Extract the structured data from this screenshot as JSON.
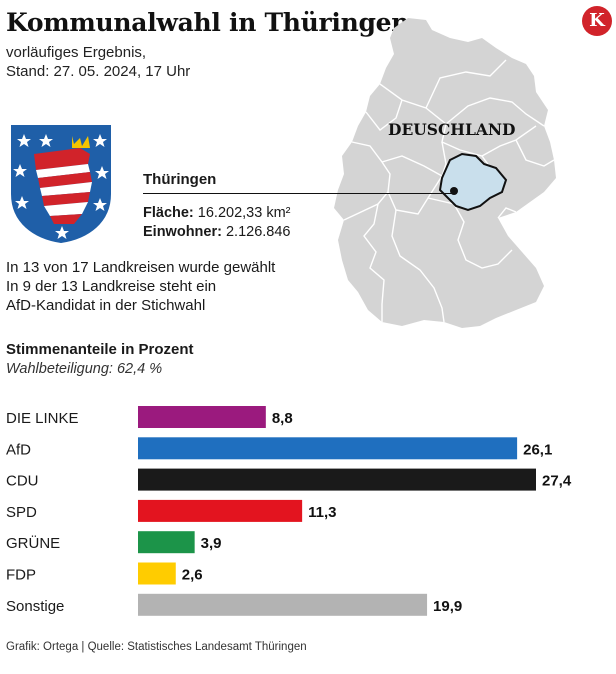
{
  "header": {
    "title": "Kommunalwahl in Thüringen",
    "subtitle_line1": "vorläufiges Ergebnis,",
    "subtitle_line2": "Stand: 27. 05. 2024, 17 Uhr",
    "logo_letter": "K"
  },
  "map": {
    "country_label": "DEUSCHLAND",
    "state_name": "Thüringen",
    "area_label": "Fläche:",
    "area_value": "16.202,33 km²",
    "population_label": "Einwohner:",
    "population_value": "2.126.846"
  },
  "notes": [
    "In 13 von 17 Landkreisen wurde gewählt",
    "In 9 der 13 Landkreise steht ein",
    "AfD-Kandidat in der Stichwahl"
  ],
  "colors": {
    "state_fill": "#c9dfec",
    "country_fill": "#d4d4d4",
    "logo": "#d1232a"
  },
  "chart_data": {
    "type": "bar",
    "orientation": "horizontal",
    "title": "Stimmenanteile in Prozent",
    "subtitle": "Wahlbeteiligung: 62,4 %",
    "categories": [
      "DIE LINKE",
      "AfD",
      "CDU",
      "SPD",
      "GRÜNE",
      "FDP",
      "Sonstige"
    ],
    "values": [
      8.8,
      26.1,
      27.4,
      11.3,
      3.9,
      2.6,
      19.9
    ],
    "value_labels": [
      "8,8",
      "26,1",
      "27,4",
      "11,3",
      "3,9",
      "2,6",
      "19,9"
    ],
    "colors": [
      "#9b1a7e",
      "#1f6fbf",
      "#1a1a1a",
      "#e3141f",
      "#1c9449",
      "#ffcc00",
      "#b3b3b3"
    ],
    "xlim": [
      0,
      27.4
    ],
    "grid": false,
    "legend": "none"
  },
  "footer": "Grafik: Ortega | Quelle: Statistisches Landesamt Thüringen"
}
